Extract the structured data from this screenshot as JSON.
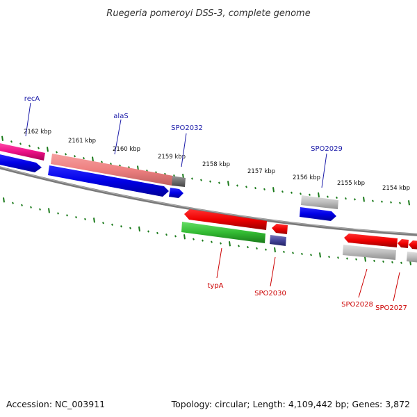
{
  "title": "Ruegeria pomeroyi DSS-3, complete genome",
  "footer": {
    "accession": "Accession: NC_003911",
    "summary": "Topology: circular; Length: 4,109,442 bp; Genes: 3,872"
  },
  "ticks": [
    "2162 kbp",
    "2161 kbp",
    "2160 kbp",
    "2159 kbp",
    "2158 kbp",
    "2157 kbp",
    "2156 kbp",
    "2155 kbp",
    "2154 kbp"
  ],
  "gene_labels": {
    "recA": "recA",
    "alaS": "alaS",
    "spo2032": "SPO2032",
    "spo2029": "SPO2029",
    "typA": "typA",
    "spo2030": "SPO2030",
    "spo2028": "SPO2028",
    "spo2027": "SPO2027"
  },
  "colors": {
    "forward_label": "#1a1aa8",
    "reverse_label": "#cc0000",
    "tick": "#1a7a1a",
    "backbone": "#808080"
  }
}
